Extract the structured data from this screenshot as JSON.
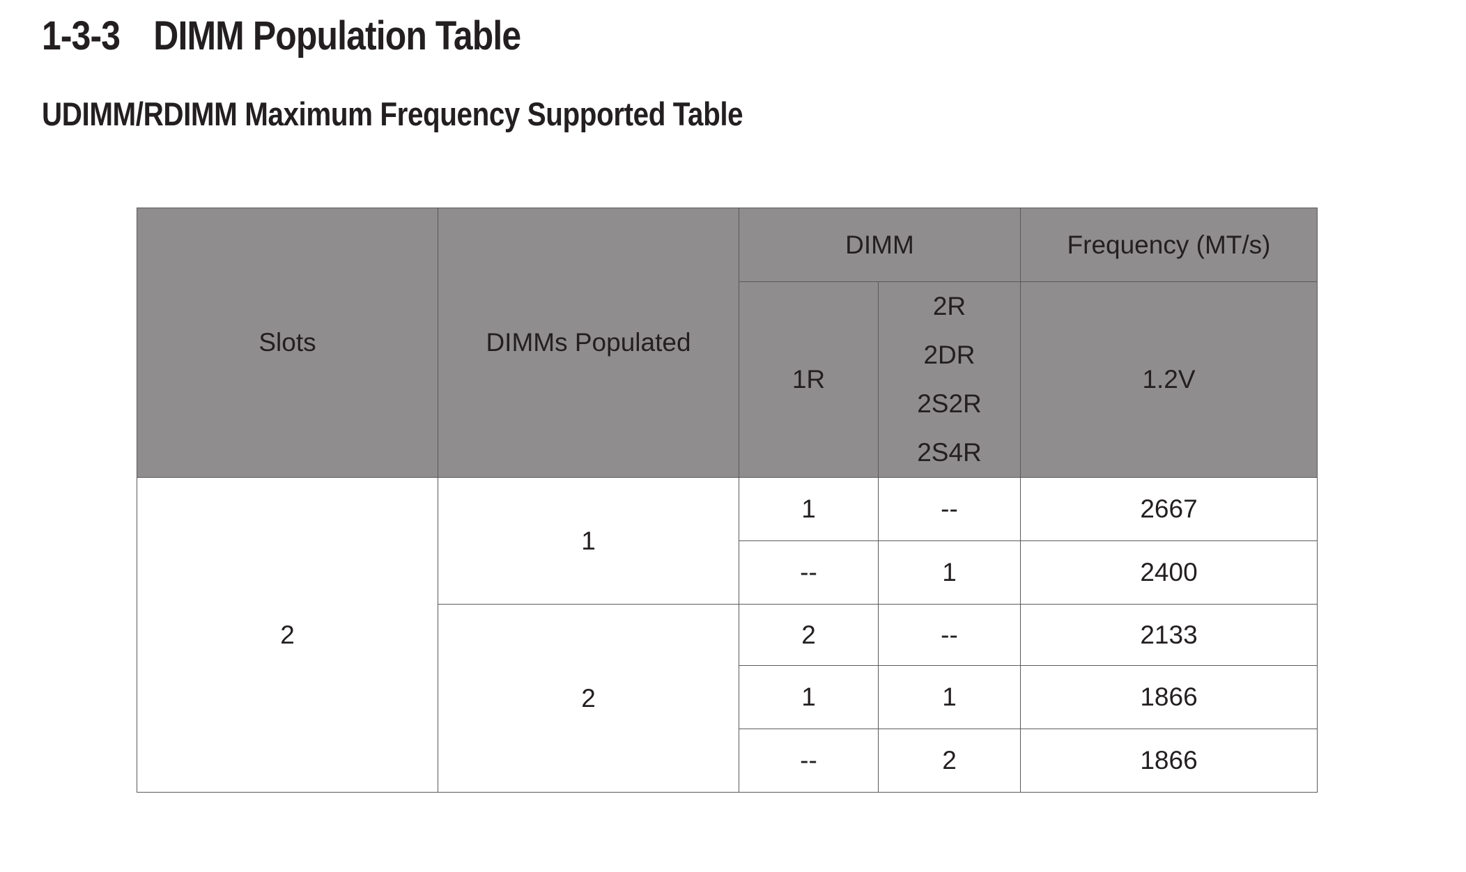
{
  "heading": {
    "number": "1-3-3",
    "title": "DIMM Population Table"
  },
  "subheading": "UDIMM/RDIMM Maximum Frequency Supported Table",
  "table": {
    "headers": {
      "slots": "Slots",
      "dimms_populated": "DIMMs Populated",
      "dimm": "DIMM",
      "frequency": "Frequency (MT/s)",
      "rank_1r": "1R",
      "rank_multi": [
        "2R",
        "2DR",
        "2S2R",
        "2S4R"
      ],
      "voltage": "1.2V"
    },
    "slots_value": "2",
    "groups": [
      {
        "populated": "1",
        "rows": [
          {
            "r1": "1",
            "r2": "--",
            "freq": "2667"
          },
          {
            "r1": "--",
            "r2": "1",
            "freq": "2400"
          }
        ]
      },
      {
        "populated": "2",
        "rows": [
          {
            "r1": "2",
            "r2": "--",
            "freq": "2133"
          },
          {
            "r1": "1",
            "r2": "1",
            "freq": "1866"
          },
          {
            "r1": "--",
            "r2": "2",
            "freq": "1866"
          }
        ]
      }
    ],
    "colors": {
      "header_bg": "#8f8d8e",
      "border": "#5a5a5a",
      "text": "#231f20"
    }
  }
}
